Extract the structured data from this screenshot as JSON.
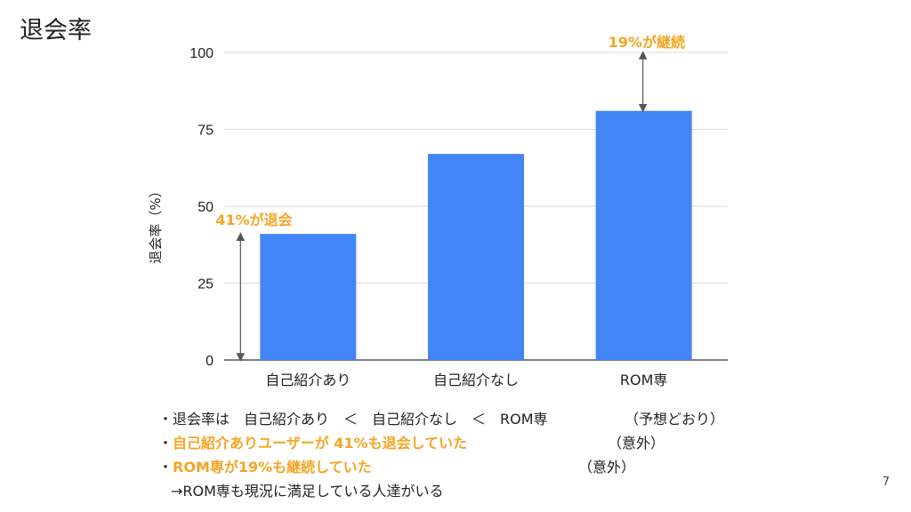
{
  "slide": {
    "title": "退会率",
    "page_number": "7"
  },
  "chart_data": {
    "type": "bar",
    "categories": [
      "自己紹介あり",
      "自己紹介なし",
      "ROM専"
    ],
    "values": [
      41,
      67,
      81
    ],
    "ylabel": "退会率（%）",
    "ylim": [
      0,
      100
    ],
    "yticks": [
      "0",
      "25",
      "50",
      "75",
      "100"
    ],
    "grid": true,
    "bar_color": "#4285f4",
    "annotations": [
      {
        "text": "41%が退会",
        "color": "#f5a524",
        "range": [
          0,
          41
        ],
        "category": "自己紹介あり"
      },
      {
        "text": "19%が継続",
        "color": "#f5a524",
        "range": [
          81,
          100
        ],
        "category": "ROM専"
      }
    ]
  },
  "bullets": [
    {
      "text": "・退会率は　自己紹介あり　＜　自己紹介なし　＜　ROM専",
      "note": "（予想どおり）",
      "highlight": false
    },
    {
      "text": "・",
      "highlight_text": "自己紹介ありユーザーが 41%も退会していた",
      "note": "（意外）",
      "highlight": true
    },
    {
      "text": "・",
      "highlight_text": "ROM専が19%も継続していた",
      "note": "（意外）",
      "highlight": true
    },
    {
      "text": "→ROM専も現況に満足している人達がいる",
      "highlight": false
    }
  ]
}
